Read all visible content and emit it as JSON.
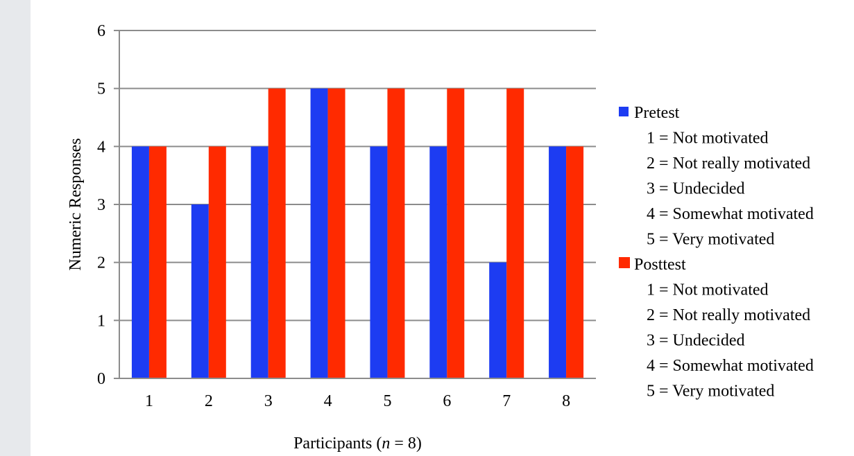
{
  "chart_data": {
    "type": "bar",
    "title": "",
    "xlabel_prefix": "Participants (",
    "xlabel_italic": "n",
    "xlabel_suffix": " = 8)",
    "ylabel": "Numeric Responses",
    "ylim": [
      0,
      6
    ],
    "yticks": [
      "0",
      "1",
      "2",
      "3",
      "4",
      "5",
      "6"
    ],
    "categories": [
      "1",
      "2",
      "3",
      "4",
      "5",
      "6",
      "7",
      "8"
    ],
    "grid": true,
    "legend_position": "right",
    "series": [
      {
        "name": "Pretest",
        "color": "#1d3cf2",
        "values": [
          4,
          3,
          4,
          5,
          4,
          4,
          2,
          4
        ]
      },
      {
        "name": "Posttest",
        "color": "#ff2a00",
        "values": [
          4,
          4,
          5,
          5,
          5,
          5,
          5,
          4
        ]
      }
    ],
    "legend_scale": [
      "1 = Not motivated",
      "2 = Not really motivated",
      "3 = Undecided",
      "4 = Somewhat motivated",
      "5 = Very motivated"
    ]
  }
}
